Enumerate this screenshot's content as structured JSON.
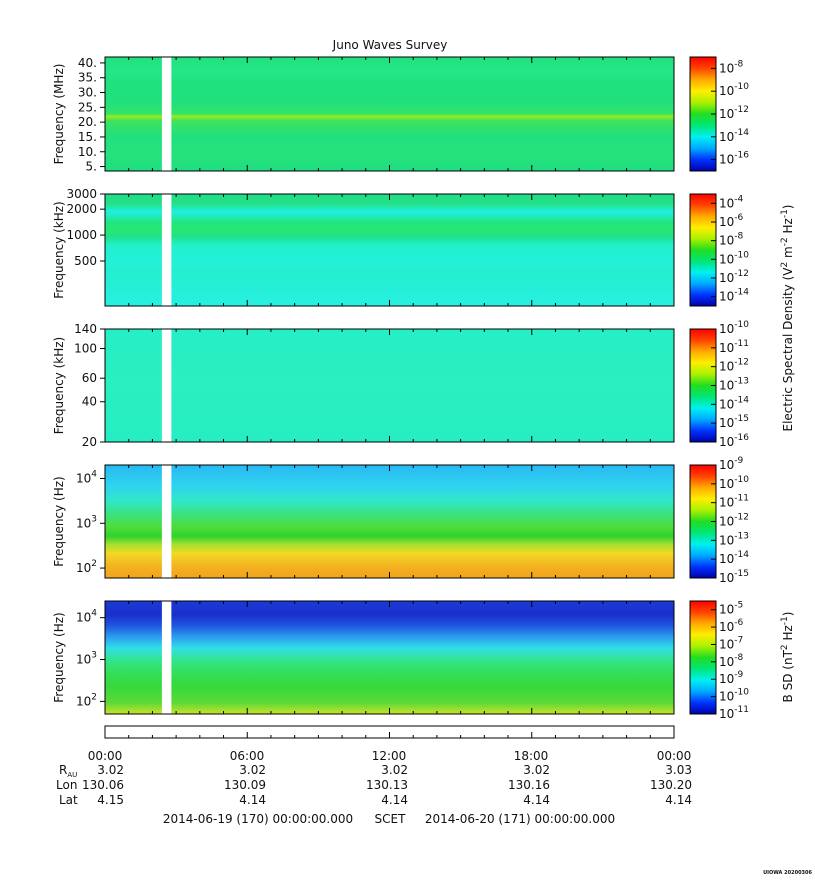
{
  "chart_data": [
    {
      "type": "heatmap",
      "title": "Juno Waves Survey",
      "ylabel": "Frequency (MHz)",
      "yscale": "linear",
      "ylim": [
        3.5,
        42
      ],
      "yticks": [
        {
          "v": 40,
          "label": "40."
        },
        {
          "v": 35,
          "label": "35."
        },
        {
          "v": 30,
          "label": "30."
        },
        {
          "v": 25,
          "label": "25."
        },
        {
          "v": 20,
          "label": "20."
        },
        {
          "v": 15,
          "label": "15."
        },
        {
          "v": 10,
          "label": "10."
        },
        {
          "v": 5,
          "label": "5."
        }
      ],
      "colorbar": {
        "range_exp": [
          -17,
          -7
        ],
        "ticks": [
          {
            "exp": -8,
            "base": "10",
            "sup": "-8"
          },
          {
            "exp": -10,
            "base": "10",
            "sup": "-10"
          },
          {
            "exp": -12,
            "base": "10",
            "sup": "-12"
          },
          {
            "exp": -14,
            "base": "10",
            "sup": "-14"
          },
          {
            "exp": -16,
            "base": "10",
            "sup": "-16"
          }
        ]
      },
      "bands": [
        {
          "pos": 0.0,
          "color": "#1fe27c"
        },
        {
          "pos": 0.12,
          "color": "#26e58a"
        },
        {
          "pos": 0.24,
          "color": "#1ee27b"
        },
        {
          "pos": 0.4,
          "color": "#21e07f"
        },
        {
          "pos": 0.5,
          "color": "#34e565"
        },
        {
          "pos": 0.52,
          "color": "#9fe81e"
        },
        {
          "pos": 0.56,
          "color": "#3fe25c"
        },
        {
          "pos": 0.7,
          "color": "#22e07e"
        },
        {
          "pos": 0.86,
          "color": "#27e37d"
        },
        {
          "pos": 1.0,
          "color": "#1fde80"
        }
      ]
    },
    {
      "type": "heatmap",
      "ylabel": "Frequency (kHz)",
      "yscale": "log",
      "ylim": [
        150,
        3000
      ],
      "yticks": [
        {
          "v": 3000,
          "label": "3000"
        },
        {
          "v": 2000,
          "label": "2000"
        },
        {
          "v": 1000,
          "label": "1000"
        },
        {
          "v": 500,
          "label": "500"
        }
      ],
      "colorbar": {
        "label": "Electric Spectral Density (V2 m-2 Hz-1)",
        "range_exp": [
          -15,
          -3
        ],
        "ticks": [
          {
            "exp": -4,
            "base": "10",
            "sup": "-4"
          },
          {
            "exp": -6,
            "base": "10",
            "sup": "-6"
          },
          {
            "exp": -8,
            "base": "10",
            "sup": "-8"
          },
          {
            "exp": -10,
            "base": "10",
            "sup": "-10"
          },
          {
            "exp": -12,
            "base": "10",
            "sup": "-12"
          },
          {
            "exp": -14,
            "base": "10",
            "sup": "-14"
          }
        ]
      },
      "bands": [
        {
          "pos": 0.0,
          "color": "#1fdd8c"
        },
        {
          "pos": 0.08,
          "color": "#25e083"
        },
        {
          "pos": 0.16,
          "color": "#1ef0e0"
        },
        {
          "pos": 0.26,
          "color": "#22e47c"
        },
        {
          "pos": 0.32,
          "color": "#27e873"
        },
        {
          "pos": 0.38,
          "color": "#20e28a"
        },
        {
          "pos": 0.46,
          "color": "#22f0cc"
        },
        {
          "pos": 0.6,
          "color": "#22f1db"
        },
        {
          "pos": 0.68,
          "color": "#25eecf"
        },
        {
          "pos": 1.0,
          "color": "#27f0e0"
        }
      ]
    },
    {
      "type": "heatmap",
      "ylabel": "Frequency (kHz)",
      "yscale": "log",
      "ylim": [
        20,
        140
      ],
      "yticks": [
        {
          "v": 140,
          "label": "140"
        },
        {
          "v": 100,
          "label": "100"
        },
        {
          "v": 60,
          "label": "60"
        },
        {
          "v": 40,
          "label": "40"
        },
        {
          "v": 20,
          "label": "20"
        }
      ],
      "colorbar": {
        "range_exp": [
          -16,
          -10
        ],
        "ticks": [
          {
            "exp": -10,
            "base": "10",
            "sup": "-10"
          },
          {
            "exp": -11,
            "base": "10",
            "sup": "-11"
          },
          {
            "exp": -12,
            "base": "10",
            "sup": "-12"
          },
          {
            "exp": -13,
            "base": "10",
            "sup": "-13"
          },
          {
            "exp": -14,
            "base": "10",
            "sup": "-14"
          },
          {
            "exp": -15,
            "base": "10",
            "sup": "-15"
          },
          {
            "exp": -16,
            "base": "10",
            "sup": "-16"
          }
        ]
      },
      "bands": [
        {
          "pos": 0.0,
          "color": "#26eec6"
        },
        {
          "pos": 0.5,
          "color": "#2aefbf"
        },
        {
          "pos": 1.0,
          "color": "#26edc4"
        }
      ]
    },
    {
      "type": "heatmap",
      "ylabel": "Frequency (Hz)",
      "yscale": "log",
      "ylim": [
        60,
        20000
      ],
      "yticks": [
        {
          "v": 10000,
          "base": "10",
          "sup": "4"
        },
        {
          "v": 1000,
          "base": "10",
          "sup": "3"
        },
        {
          "v": 100,
          "base": "10",
          "sup": "2"
        }
      ],
      "colorbar": {
        "range_exp": [
          -15,
          -9
        ],
        "ticks": [
          {
            "exp": -9,
            "base": "10",
            "sup": "-9"
          },
          {
            "exp": -10,
            "base": "10",
            "sup": "-10"
          },
          {
            "exp": -11,
            "base": "10",
            "sup": "-11"
          },
          {
            "exp": -12,
            "base": "10",
            "sup": "-12"
          },
          {
            "exp": -13,
            "base": "10",
            "sup": "-13"
          },
          {
            "exp": -14,
            "base": "10",
            "sup": "-14"
          },
          {
            "exp": -15,
            "base": "10",
            "sup": "-15"
          }
        ]
      },
      "bands": [
        {
          "pos": 0.0,
          "color": "#28b9f2"
        },
        {
          "pos": 0.18,
          "color": "#2fd2f0"
        },
        {
          "pos": 0.32,
          "color": "#30e8c8"
        },
        {
          "pos": 0.44,
          "color": "#3be27a"
        },
        {
          "pos": 0.55,
          "color": "#4fdc3a"
        },
        {
          "pos": 0.63,
          "color": "#2fd32e"
        },
        {
          "pos": 0.7,
          "color": "#9fe030"
        },
        {
          "pos": 0.78,
          "color": "#f3d924"
        },
        {
          "pos": 0.9,
          "color": "#f3b120"
        },
        {
          "pos": 1.0,
          "color": "#f2a41c"
        }
      ]
    },
    {
      "type": "heatmap",
      "ylabel": "Frequency (Hz)",
      "yscale": "log",
      "ylim": [
        50,
        25000
      ],
      "yticks": [
        {
          "v": 10000,
          "base": "10",
          "sup": "4"
        },
        {
          "v": 1000,
          "base": "10",
          "sup": "3"
        },
        {
          "v": 100,
          "base": "10",
          "sup": "2"
        }
      ],
      "colorbar": {
        "label": "B SD (nT2 Hz-1)",
        "range_exp": [
          -11,
          -4.5
        ],
        "ticks": [
          {
            "exp": -5,
            "base": "10",
            "sup": "-5"
          },
          {
            "exp": -6,
            "base": "10",
            "sup": "-6"
          },
          {
            "exp": -7,
            "base": "10",
            "sup": "-7"
          },
          {
            "exp": -8,
            "base": "10",
            "sup": "-8"
          },
          {
            "exp": -9,
            "base": "10",
            "sup": "-9"
          },
          {
            "exp": -10,
            "base": "10",
            "sup": "-10"
          },
          {
            "exp": -11,
            "base": "10",
            "sup": "-11"
          }
        ]
      },
      "bands": [
        {
          "pos": 0.0,
          "color": "#1c3bd6"
        },
        {
          "pos": 0.12,
          "color": "#1a2ecb"
        },
        {
          "pos": 0.22,
          "color": "#2156e0"
        },
        {
          "pos": 0.32,
          "color": "#2b9ff0"
        },
        {
          "pos": 0.42,
          "color": "#30e0e6"
        },
        {
          "pos": 0.52,
          "color": "#30e58f"
        },
        {
          "pos": 0.62,
          "color": "#34e05e"
        },
        {
          "pos": 0.75,
          "color": "#35d93c"
        },
        {
          "pos": 0.9,
          "color": "#5cd936"
        },
        {
          "pos": 1.0,
          "color": "#c8e32a"
        }
      ]
    }
  ],
  "x_axis": {
    "ticks": [
      "00:00",
      "06:00",
      "12:00",
      "18:00",
      "00:00"
    ],
    "range_hours": [
      0,
      24
    ],
    "data_gap_hours": [
      2.4,
      2.8
    ]
  },
  "ephemeris": {
    "rows": [
      {
        "label_base": "R",
        "label_sub": "AU",
        "values": [
          "3.02",
          "3.02",
          "3.02",
          "3.02",
          "3.03"
        ]
      },
      {
        "label_base": "Lon",
        "label_sub": "",
        "values": [
          "130.06",
          "130.09",
          "130.13",
          "130.16",
          "130.20"
        ]
      },
      {
        "label_base": "Lat",
        "label_sub": "",
        "values": [
          "4.15",
          "4.14",
          "4.14",
          "4.14",
          "4.14"
        ]
      }
    ]
  },
  "footer": {
    "start": "2014-06-19 (170) 00:00:00.000",
    "scet": "SCET",
    "end": "2014-06-20 (171) 00:00:00.000"
  },
  "credit": "UIOWA 20200306",
  "colors": {
    "background": "#ffffff",
    "gap": "#ffffff",
    "axis": "#000000"
  }
}
